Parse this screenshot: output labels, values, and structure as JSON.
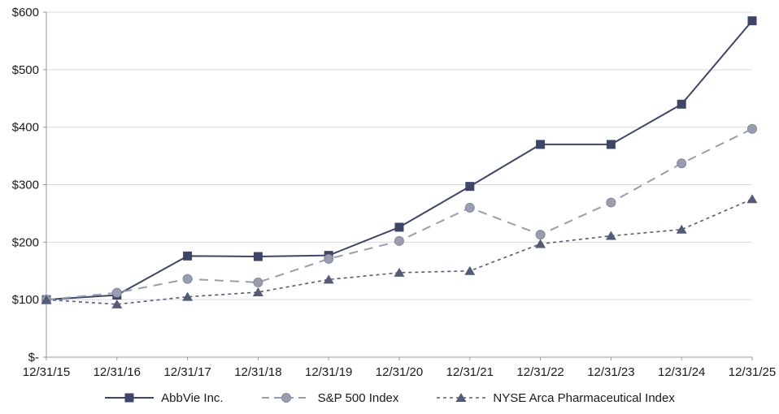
{
  "chart_data": {
    "type": "line",
    "title": "",
    "xlabel": "",
    "ylabel": "",
    "ylim": [
      0,
      600
    ],
    "grid": true,
    "legend_position": "bottom",
    "x": [
      "12/31/15",
      "12/31/16",
      "12/31/17",
      "12/31/18",
      "12/31/19",
      "12/31/20",
      "12/31/21",
      "12/31/22",
      "12/31/23",
      "12/31/24",
      "12/31/25"
    ],
    "yticks": [
      "$-",
      "$100",
      "$200",
      "$300",
      "$400",
      "$500",
      "$600"
    ],
    "series": [
      {
        "name": "AbbVie Inc.",
        "values": [
          100,
          108,
          176,
          175,
          177,
          226,
          297,
          370,
          370,
          440,
          585
        ],
        "color": "#3f4566",
        "marker": "square",
        "dash": "solid",
        "width": 2
      },
      {
        "name": "S&P 500 Index",
        "values": [
          100,
          112,
          136,
          130,
          171,
          202,
          260,
          213,
          269,
          337,
          397
        ],
        "color": "#9a9cb0",
        "marker": "circle",
        "dash": "dashed",
        "width": 2
      },
      {
        "name": "NYSE Arca Pharmaceutical Index",
        "values": [
          100,
          92,
          105,
          113,
          135,
          147,
          150,
          197,
          211,
          222,
          275
        ],
        "color": "#555a77",
        "marker": "triangle",
        "dash": "dotted",
        "width": 1.6
      }
    ],
    "colors": {
      "grid": "#d9d9d9",
      "axis": "#9a9a9a",
      "text": "#1a1a1a"
    }
  }
}
